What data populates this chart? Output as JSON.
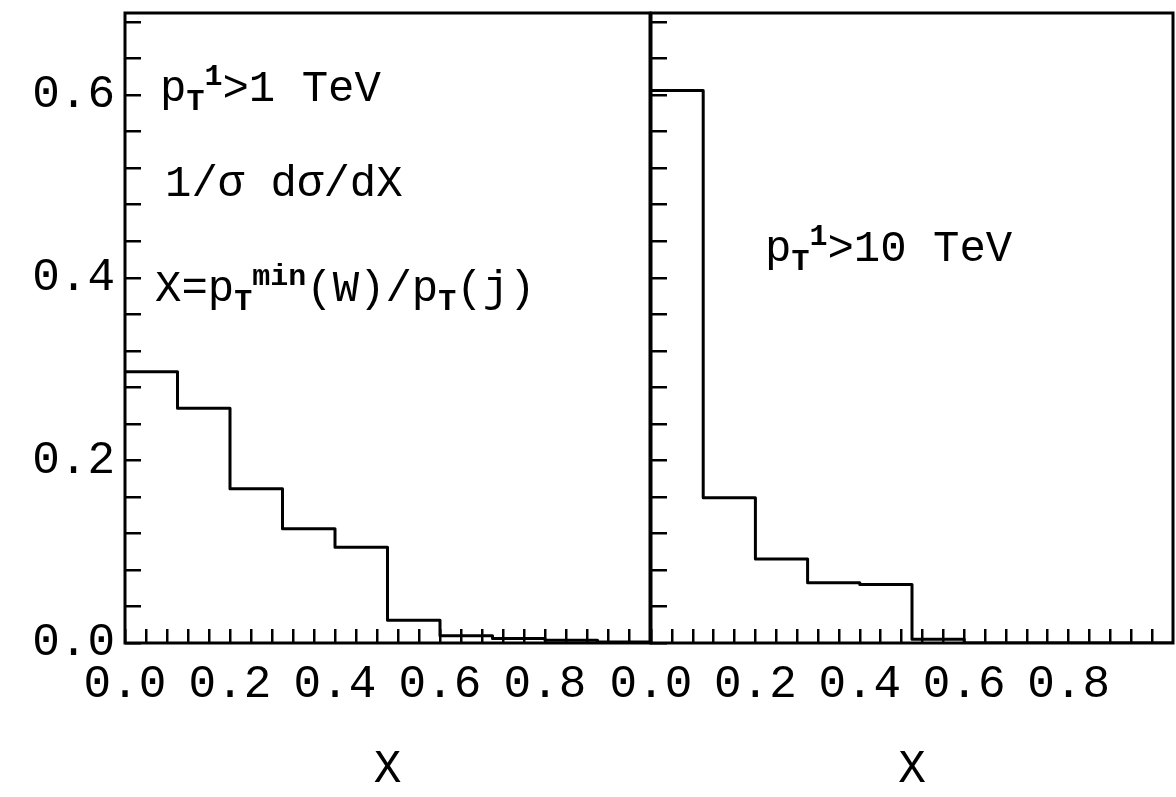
{
  "chart_data": [
    {
      "type": "histogram",
      "bins": [
        0,
        0.1,
        0.2,
        0.3,
        0.4,
        0.5,
        0.6,
        0.7,
        0.8,
        0.9,
        1.0
      ],
      "values": [
        0.297,
        0.257,
        0.169,
        0.125,
        0.105,
        0.025,
        0.008,
        0.005,
        0.003,
        0.001
      ],
      "color": "#000000",
      "xlabel": "X",
      "xlim": [
        0,
        1.0
      ],
      "xticks": [
        {
          "value": 0,
          "label": "0.0"
        },
        {
          "value": 0.04,
          "label": null
        },
        {
          "value": 0.08,
          "label": null
        },
        {
          "value": 0.12,
          "label": null
        },
        {
          "value": 0.16,
          "label": null
        },
        {
          "value": 0.2,
          "label": "0.2"
        },
        {
          "value": 0.24,
          "label": null
        },
        {
          "value": 0.28,
          "label": null
        },
        {
          "value": 0.32,
          "label": null
        },
        {
          "value": 0.36,
          "label": null
        },
        {
          "value": 0.4,
          "label": "0.4"
        },
        {
          "value": 0.44,
          "label": null
        },
        {
          "value": 0.48,
          "label": null
        },
        {
          "value": 0.52,
          "label": null
        },
        {
          "value": 0.56,
          "label": null
        },
        {
          "value": 0.6,
          "label": "0.6"
        },
        {
          "value": 0.64,
          "label": null
        },
        {
          "value": 0.68,
          "label": null
        },
        {
          "value": 0.72,
          "label": null
        },
        {
          "value": 0.76,
          "label": null
        },
        {
          "value": 0.8,
          "label": "0.8"
        },
        {
          "value": 0.84,
          "label": null
        },
        {
          "value": 0.88,
          "label": null
        },
        {
          "value": 0.92,
          "label": null
        },
        {
          "value": 0.96,
          "label": null
        }
      ],
      "ylim": [
        0,
        0.69
      ],
      "yticks": [
        {
          "value": 0,
          "label": "0.0"
        },
        {
          "value": 0.04,
          "label": null
        },
        {
          "value": 0.08,
          "label": null
        },
        {
          "value": 0.12,
          "label": null
        },
        {
          "value": 0.16,
          "label": null
        },
        {
          "value": 0.2,
          "label": "0.2"
        },
        {
          "value": 0.24,
          "label": null
        },
        {
          "value": 0.28,
          "label": null
        },
        {
          "value": 0.32,
          "label": null
        },
        {
          "value": 0.36,
          "label": null
        },
        {
          "value": 0.4,
          "label": "0.4"
        },
        {
          "value": 0.44,
          "label": null
        },
        {
          "value": 0.48,
          "label": null
        },
        {
          "value": 0.52,
          "label": null
        },
        {
          "value": 0.56,
          "label": null
        },
        {
          "value": 0.6,
          "label": "0.6"
        },
        {
          "value": 0.64,
          "label": null
        },
        {
          "value": 0.68,
          "label": null
        }
      ],
      "annotations": [
        "p$_{T}$$^{1}$>1 TeV",
        "1/σ dσ/dX",
        "X=p$_{T}$$^{min}$(W)/p$_{T}$(j)"
      ]
    },
    {
      "type": "histogram",
      "bins": [
        0,
        0.1,
        0.2,
        0.3,
        0.4,
        0.5,
        0.6,
        0.7,
        0.8,
        0.9,
        1.0
      ],
      "values": [
        0.605,
        0.159,
        0.092,
        0.066,
        0.064,
        0.004,
        0,
        0,
        0,
        0
      ],
      "color": "#000000",
      "xlabel": "X",
      "xlim": [
        0,
        1.0
      ],
      "xticks": [
        {
          "value": 0,
          "label": "0.0"
        },
        {
          "value": 0.04,
          "label": null
        },
        {
          "value": 0.08,
          "label": null
        },
        {
          "value": 0.12,
          "label": null
        },
        {
          "value": 0.16,
          "label": null
        },
        {
          "value": 0.2,
          "label": "0.2"
        },
        {
          "value": 0.24,
          "label": null
        },
        {
          "value": 0.28,
          "label": null
        },
        {
          "value": 0.32,
          "label": null
        },
        {
          "value": 0.36,
          "label": null
        },
        {
          "value": 0.4,
          "label": "0.4"
        },
        {
          "value": 0.44,
          "label": null
        },
        {
          "value": 0.48,
          "label": null
        },
        {
          "value": 0.52,
          "label": null
        },
        {
          "value": 0.56,
          "label": null
        },
        {
          "value": 0.6,
          "label": "0.6"
        },
        {
          "value": 0.64,
          "label": null
        },
        {
          "value": 0.68,
          "label": null
        },
        {
          "value": 0.72,
          "label": null
        },
        {
          "value": 0.76,
          "label": null
        },
        {
          "value": 0.8,
          "label": "0.8"
        },
        {
          "value": 0.84,
          "label": null
        },
        {
          "value": 0.88,
          "label": null
        },
        {
          "value": 0.92,
          "label": null
        },
        {
          "value": 0.96,
          "label": null
        }
      ],
      "ylim": [
        0,
        0.69
      ],
      "yticks": [
        0,
        0.04,
        0.08,
        0.12,
        0.16,
        0.2,
        0.24,
        0.28,
        0.32,
        0.36,
        0.4,
        0.44,
        0.48,
        0.52,
        0.56,
        0.6,
        0.64,
        0.68
      ],
      "tick_labels": "x",
      "annotations": [
        "p$_{T}$$^{1}$>10 TeV"
      ]
    }
  ]
}
